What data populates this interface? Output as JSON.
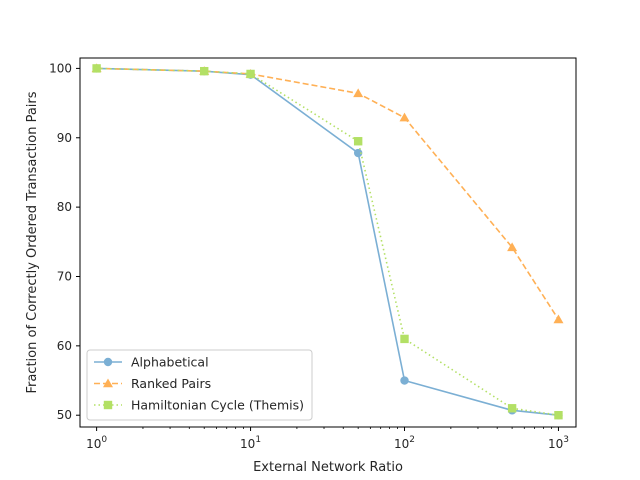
{
  "chart_data": {
    "type": "line",
    "xlabel": "External Network Ratio",
    "ylabel": "Fraction of Correctly Ordered Transaction Pairs",
    "xscale": "log",
    "xlim": [
      0.78,
      1300
    ],
    "ylim": [
      48.3,
      101.5
    ],
    "x_ticks": [
      {
        "value": 1,
        "base": "10",
        "exp": "0"
      },
      {
        "value": 10,
        "base": "10",
        "exp": "1"
      },
      {
        "value": 100,
        "base": "10",
        "exp": "2"
      },
      {
        "value": 1000,
        "base": "10",
        "exp": "3"
      }
    ],
    "y_ticks": [
      50,
      60,
      70,
      80,
      90,
      100
    ],
    "grid": false,
    "legend_position": "lower-left",
    "series": [
      {
        "name": "Alphabetical",
        "color": "#7bafd4",
        "marker": "circle",
        "line_style": "solid",
        "x": [
          1,
          5,
          10,
          50,
          100,
          500,
          1000
        ],
        "y": [
          100.0,
          99.6,
          99.1,
          87.8,
          55.0,
          50.7,
          50.0
        ]
      },
      {
        "name": "Ranked Pairs",
        "color": "#ffb055",
        "marker": "triangle",
        "line_style": "dashed",
        "x": [
          1,
          5,
          10,
          50,
          100,
          500,
          1000
        ],
        "y": [
          100.0,
          99.6,
          99.2,
          96.4,
          92.9,
          74.2,
          63.8
        ]
      },
      {
        "name": "Hamiltonian Cycle (Themis)",
        "color": "#b3e065",
        "marker": "square",
        "line_style": "dotted",
        "x": [
          1,
          5,
          10,
          50,
          100,
          500,
          1000
        ],
        "y": [
          100.0,
          99.6,
          99.2,
          89.5,
          61.0,
          51.0,
          50.0
        ]
      }
    ]
  }
}
